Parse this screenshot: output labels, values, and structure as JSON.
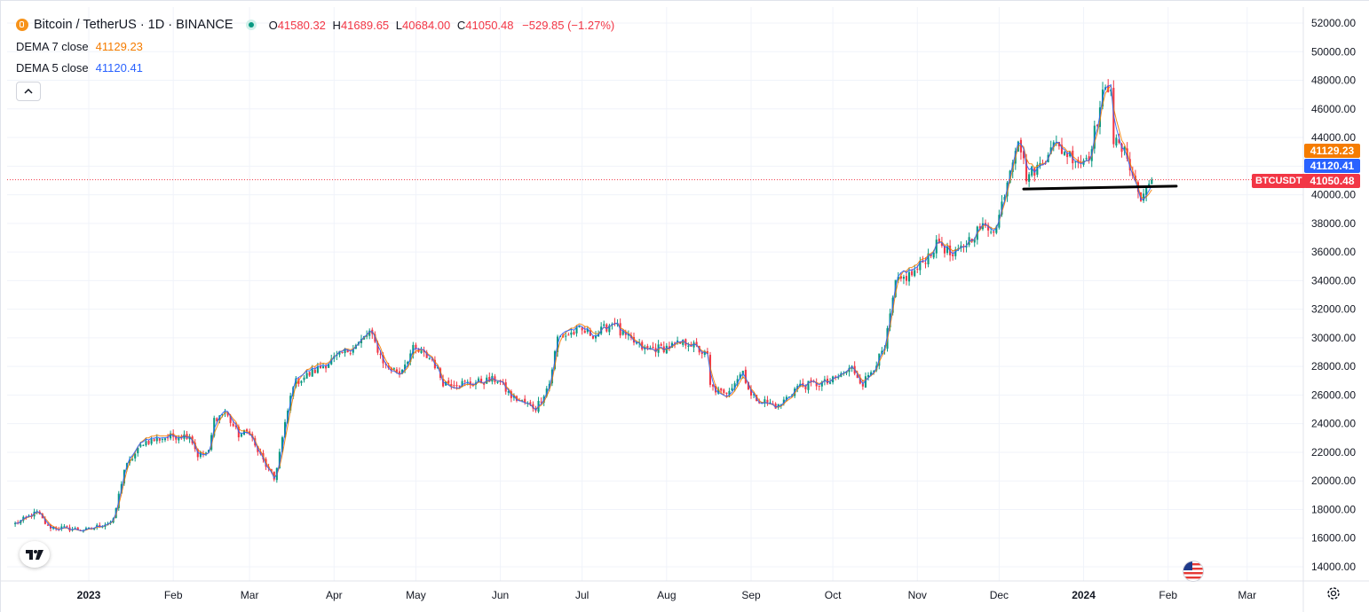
{
  "header": {
    "symbol_title": "Bitcoin / TetherUS · 1D · BINANCE",
    "ohlc": {
      "o_key": "O",
      "o_val": "41580.32",
      "h_key": "H",
      "h_val": "41689.65",
      "l_key": "L",
      "l_val": "40684.00",
      "c_key": "C",
      "c_val": "41050.48",
      "change": "−529.85 (−1.27%)"
    }
  },
  "indicators": [
    {
      "name": "DEMA 7 close",
      "value": "41129.23",
      "color": "#f57c00"
    },
    {
      "name": "DEMA 5 close",
      "value": "41120.41",
      "color": "#2962ff"
    }
  ],
  "price_tags": {
    "dema7": "41129.23",
    "dema5": "41120.41",
    "last": "41050.48",
    "symbol": "BTCUSDT"
  },
  "colors": {
    "up": "#089981",
    "down": "#f23645",
    "dema7": "#f57c00",
    "dema5": "#2962ff",
    "grid": "#f0f3fa",
    "axis_text": "#131722"
  },
  "icons": [
    "bitcoin-icon",
    "market-open-icon",
    "collapse-chevron-icon",
    "tradingview-logo-icon",
    "us-flag-icon",
    "gear-icon"
  ],
  "chart_data": {
    "type": "candlestick",
    "y_ticks": [
      "52000.00",
      "50000.00",
      "48000.00",
      "46000.00",
      "44000.00",
      "42000.00",
      "40000.00",
      "38000.00",
      "36000.00",
      "34000.00",
      "32000.00",
      "30000.00",
      "28000.00",
      "26000.00",
      "24000.00",
      "22000.00",
      "20000.00",
      "18000.00",
      "16000.00",
      "14000.00"
    ],
    "ylim": [
      14000,
      52000
    ],
    "x_ticks": [
      {
        "label": "2023",
        "date": "2023-01-01",
        "bold": true
      },
      {
        "label": "Feb",
        "date": "2023-02-01"
      },
      {
        "label": "Mar",
        "date": "2023-03-01"
      },
      {
        "label": "Apr",
        "date": "2023-04-01"
      },
      {
        "label": "May",
        "date": "2023-05-01"
      },
      {
        "label": "Jun",
        "date": "2023-06-01"
      },
      {
        "label": "Jul",
        "date": "2023-07-01"
      },
      {
        "label": "Aug",
        "date": "2023-08-01"
      },
      {
        "label": "Sep",
        "date": "2023-09-01"
      },
      {
        "label": "Oct",
        "date": "2023-10-01"
      },
      {
        "label": "Nov",
        "date": "2023-11-01"
      },
      {
        "label": "Dec",
        "date": "2023-12-01"
      },
      {
        "label": "2024",
        "date": "2024-01-01",
        "bold": true
      },
      {
        "label": "Feb",
        "date": "2024-02-01"
      },
      {
        "label": "Mar",
        "date": "2024-03-01"
      }
    ],
    "close_path": [
      [
        "2022-12-05",
        17000
      ],
      [
        "2022-12-13",
        17800
      ],
      [
        "2022-12-17",
        16800
      ],
      [
        "2022-12-31",
        16550
      ],
      [
        "2023-01-10",
        17200
      ],
      [
        "2023-01-14",
        20800
      ],
      [
        "2023-01-21",
        22700
      ],
      [
        "2023-01-31",
        23100
      ],
      [
        "2023-02-07",
        23200
      ],
      [
        "2023-02-10",
        21800
      ],
      [
        "2023-02-14",
        22000
      ],
      [
        "2023-02-16",
        24300
      ],
      [
        "2023-02-20",
        24800
      ],
      [
        "2023-02-25",
        23200
      ],
      [
        "2023-03-01",
        23500
      ],
      [
        "2023-03-03",
        22400
      ],
      [
        "2023-03-10",
        20100
      ],
      [
        "2023-03-12",
        22000
      ],
      [
        "2023-03-17",
        26800
      ],
      [
        "2023-03-25",
        27700
      ],
      [
        "2023-03-31",
        28400
      ],
      [
        "2023-04-10",
        29600
      ],
      [
        "2023-04-14",
        30400
      ],
      [
        "2023-04-20",
        28000
      ],
      [
        "2023-04-25",
        27600
      ],
      [
        "2023-04-30",
        29200
      ],
      [
        "2023-05-07",
        28500
      ],
      [
        "2023-05-11",
        26900
      ],
      [
        "2023-05-20",
        26800
      ],
      [
        "2023-05-31",
        27100
      ],
      [
        "2023-06-05",
        25900
      ],
      [
        "2023-06-14",
        25100
      ],
      [
        "2023-06-19",
        26800
      ],
      [
        "2023-06-22",
        30000
      ],
      [
        "2023-06-30",
        30500
      ],
      [
        "2023-07-06",
        30200
      ],
      [
        "2023-07-13",
        31200
      ],
      [
        "2023-07-15",
        30300
      ],
      [
        "2023-07-24",
        29200
      ],
      [
        "2023-07-31",
        29300
      ],
      [
        "2023-08-09",
        29700
      ],
      [
        "2023-08-16",
        28700
      ],
      [
        "2023-08-17",
        26600
      ],
      [
        "2023-08-22",
        26000
      ],
      [
        "2023-08-29",
        27700
      ],
      [
        "2023-09-01",
        25900
      ],
      [
        "2023-09-11",
        25200
      ],
      [
        "2023-09-18",
        26600
      ],
      [
        "2023-09-30",
        26900
      ],
      [
        "2023-10-08",
        27900
      ],
      [
        "2023-10-12",
        26800
      ],
      [
        "2023-10-20",
        29200
      ],
      [
        "2023-10-24",
        33800
      ],
      [
        "2023-10-31",
        34600
      ],
      [
        "2023-11-09",
        36700
      ],
      [
        "2023-11-14",
        35600
      ],
      [
        "2023-11-24",
        37700
      ],
      [
        "2023-11-30",
        37700
      ],
      [
        "2023-12-05",
        41900
      ],
      [
        "2023-12-08",
        44100
      ],
      [
        "2023-12-11",
        41300
      ],
      [
        "2023-12-17",
        42200
      ],
      [
        "2023-12-20",
        43600
      ],
      [
        "2023-12-31",
        42300
      ],
      [
        "2024-01-03",
        42800
      ],
      [
        "2024-01-08",
        46900
      ],
      [
        "2024-01-11",
        47800
      ],
      [
        "2024-01-12",
        43800
      ],
      [
        "2024-01-17",
        42700
      ],
      [
        "2024-01-22",
        39600
      ],
      [
        "2024-01-23",
        40100
      ],
      [
        "2024-01-26",
        41050
      ]
    ],
    "candles_visible": 417,
    "last_close": 41050.48,
    "support_line": {
      "from": [
        "2023-12-10",
        40400
      ],
      "to": [
        "2024-02-04",
        40600
      ],
      "color": "#000000"
    },
    "series": [
      {
        "name": "DEMA 7 close",
        "color": "#f57c00"
      },
      {
        "name": "DEMA 5 close",
        "color": "#2962ff"
      }
    ]
  }
}
